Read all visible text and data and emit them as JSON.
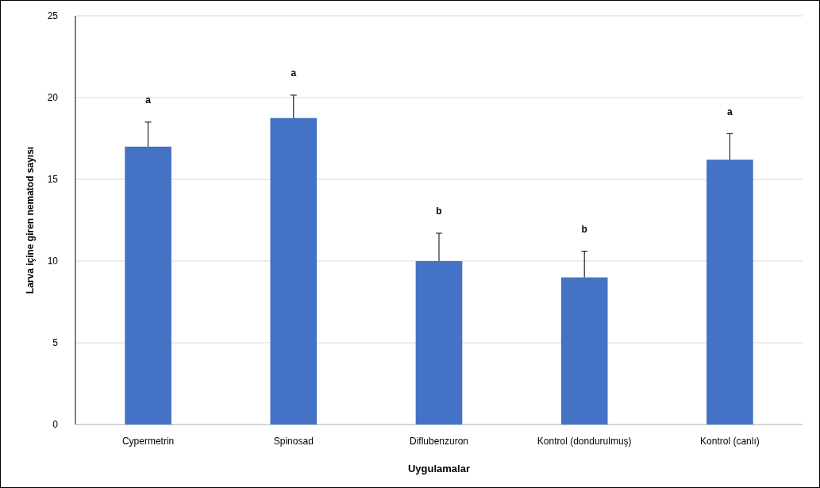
{
  "chart_data": {
    "type": "bar",
    "xlabel": "Uygulamalar",
    "ylabel": "Larva içine giren nematod sayısı",
    "categories": [
      "Cypermetrin",
      "Spinosad",
      "Diflubenzuron",
      "Kontrol (dondurulmuş)",
      "Kontrol (canlı)"
    ],
    "values": [
      17,
      18.75,
      10,
      9,
      16.2
    ],
    "errors": [
      1.5,
      1.4,
      1.7,
      1.6,
      1.6
    ],
    "color": "#4472c4",
    "ylim": [
      0,
      25
    ],
    "yticks": [
      0,
      5,
      10,
      15,
      20,
      25
    ],
    "grid": "y",
    "annotations": [
      "a",
      "a",
      "b",
      "b",
      "a"
    ]
  }
}
